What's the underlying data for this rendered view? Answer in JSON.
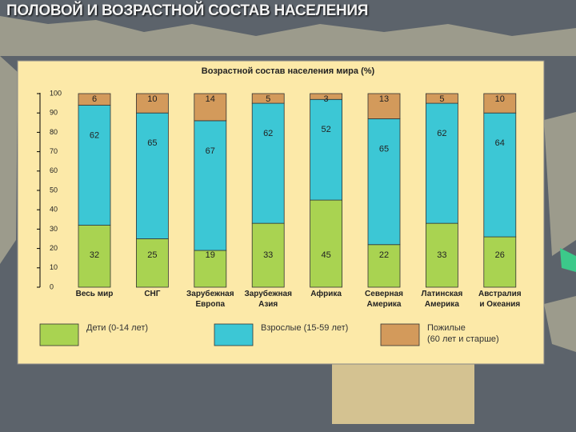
{
  "header": {
    "title": "ПОЛОВОЙ И ВОЗРАСТНОЙ СОСТАВ НАСЕЛЕНИЯ"
  },
  "chart_data": {
    "type": "stacked_bar",
    "title": "Возрастной состав населения мира (%)",
    "categories": [
      "Весь мир",
      "СНГ",
      "Зарубежная\nЕвропа",
      "Зарубежная\nАзия",
      "Африка",
      "Северная\nАмерика",
      "Латинская\nАмерика",
      "Австралия\nи Океания"
    ],
    "series": [
      {
        "name": "Дети (0-14 лет)",
        "color": "#a9d351",
        "values": [
          32,
          25,
          19,
          33,
          45,
          22,
          33,
          26
        ]
      },
      {
        "name": "Взрослые (15-59 лет)",
        "color": "#3cc7d5",
        "values": [
          62,
          65,
          67,
          62,
          52,
          65,
          62,
          64
        ]
      },
      {
        "name": "Пожилые\n(60 лет и старше)",
        "color": "#d39a5b",
        "values": [
          6,
          10,
          14,
          5,
          3,
          13,
          5,
          10
        ]
      }
    ],
    "ylim": [
      0,
      100
    ],
    "yticks": [
      0,
      10,
      20,
      30,
      40,
      50,
      60,
      70,
      80,
      90,
      100
    ]
  }
}
